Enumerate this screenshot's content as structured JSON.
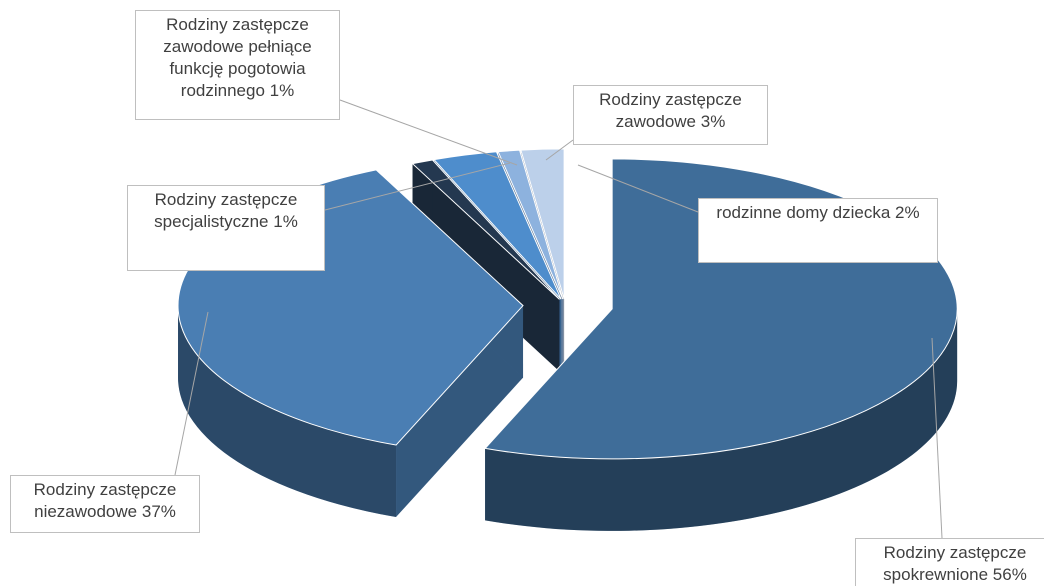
{
  "chart_data": {
    "type": "pie",
    "categories": [
      "Rodziny zastępcze spokrewnione",
      "Rodziny zastępcze niezawodowe",
      "Rodziny zastępcze specjalistyczne",
      "Rodziny zastępcze zawodowe",
      "Rodziny zastępcze zawodowe pełniące funkcję pogotowia rodzinnego",
      "rodzinne domy dziecka"
    ],
    "values": [
      56,
      37,
      1,
      3,
      1,
      2
    ],
    "value_labels": [
      "56%",
      "37%",
      "1%",
      "3%",
      "1%",
      "2%"
    ],
    "colors": [
      "#3f6d99",
      "#4a7eb3",
      "#243850",
      "#4e8dcc",
      "#8db2de",
      "#bcd0ea"
    ]
  }
}
